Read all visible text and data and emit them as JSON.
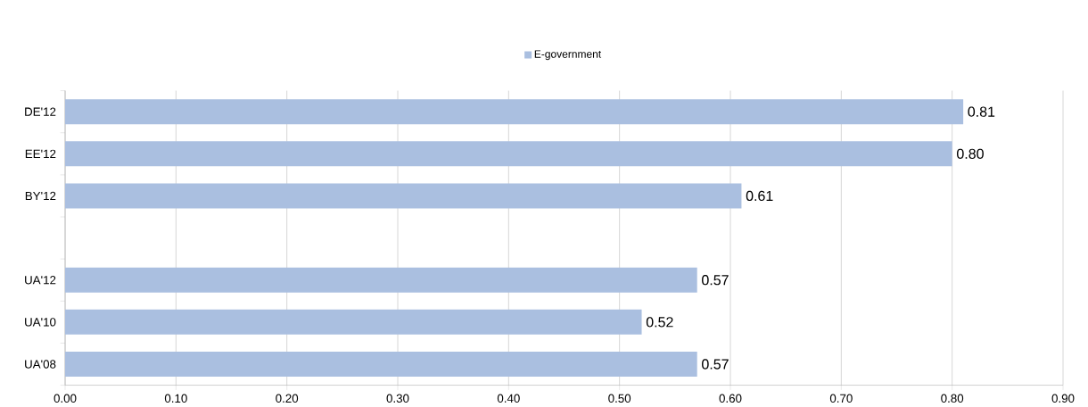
{
  "chart_data": {
    "type": "bar",
    "orientation": "horizontal",
    "categories": [
      "DE'12",
      "EE'12",
      "BY'12",
      null,
      "UA'12",
      "UA'10",
      "UA'08"
    ],
    "series": [
      {
        "name": "E-government",
        "color": "#aabfe0",
        "values": [
          0.81,
          0.8,
          0.61,
          null,
          0.57,
          0.52,
          0.57
        ],
        "value_labels": [
          "0.81",
          "0.80",
          "0.61",
          null,
          "0.57",
          "0.52",
          "0.57"
        ]
      }
    ],
    "xlim": [
      0,
      0.9
    ],
    "xticks": [
      {
        "value": 0,
        "label": "0.00"
      },
      {
        "value": 0.1,
        "label": "0.10"
      },
      {
        "value": 0.2,
        "label": "0.20"
      },
      {
        "value": 0.3,
        "label": "0.30"
      },
      {
        "value": 0.4,
        "label": "0.40"
      },
      {
        "value": 0.5,
        "label": "0.50"
      },
      {
        "value": 0.6,
        "label": "0.60"
      },
      {
        "value": 0.7,
        "label": "0.70"
      },
      {
        "value": 0.8,
        "label": "0.80"
      },
      {
        "value": 0.9,
        "label": "0.90"
      }
    ],
    "grid": "x",
    "legend": "top"
  }
}
